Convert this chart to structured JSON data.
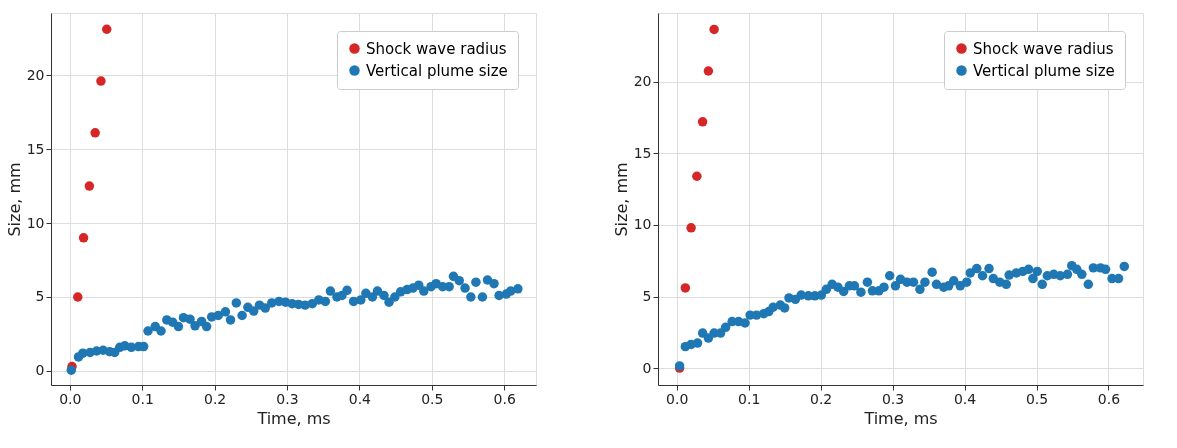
{
  "chart_data": [
    {
      "type": "scatter",
      "xlabel": "Time, ms",
      "ylabel": "Size, mm",
      "xlim": [
        -0.026,
        0.644
      ],
      "ylim": [
        -0.95,
        24.2
      ],
      "xticks": [
        {
          "value": 0,
          "label": "0.0"
        },
        0.1,
        0.2,
        0.3,
        0.4,
        0.5,
        0.6
      ],
      "yticks": [
        0,
        5,
        10,
        15,
        20
      ],
      "grid": true,
      "legend": "top right",
      "marker": "circle",
      "series": [
        {
          "name": "Shock wave radius",
          "color": "#d62728",
          "x": [
            0.003,
            0.011,
            0.019,
            0.027,
            0.035,
            0.043,
            0.051
          ],
          "values": [
            0.3,
            5,
            9,
            12.5,
            16.1,
            19.6,
            23.1
          ]
        },
        {
          "name": "Vertical plume size",
          "color": "#1f77b4",
          "x": [
            0.002,
            0.012,
            0.018,
            0.028,
            0.037,
            0.046,
            0.055,
            0.062,
            0.069,
            0.076,
            0.085,
            0.095,
            0.102,
            0.108,
            0.118,
            0.126,
            0.134,
            0.142,
            0.15,
            0.157,
            0.166,
            0.173,
            0.182,
            0.189,
            0.196,
            0.205,
            0.215,
            0.222,
            0.23,
            0.238,
            0.246,
            0.254,
            0.262,
            0.27,
            0.279,
            0.289,
            0.298,
            0.307,
            0.316,
            0.325,
            0.335,
            0.344,
            0.353,
            0.36,
            0.369,
            0.376,
            0.383,
            0.392,
            0.402,
            0.409,
            0.418,
            0.425,
            0.434,
            0.441,
            0.449,
            0.457,
            0.466,
            0.474,
            0.482,
            0.489,
            0.499,
            0.506,
            0.515,
            0.524,
            0.53,
            0.538,
            0.546,
            0.554,
            0.561,
            0.57,
            0.577,
            0.586,
            0.593,
            0.603,
            0.609,
            0.619
          ],
          "values": [
            0.05,
            0.95,
            1.2,
            1.25,
            1.35,
            1.4,
            1.3,
            1.25,
            1.6,
            1.7,
            1.6,
            1.65,
            1.65,
            2.7,
            3.0,
            2.7,
            3.45,
            3.3,
            3.0,
            3.6,
            3.5,
            3.05,
            3.35,
            3.0,
            3.65,
            3.75,
            4.0,
            3.45,
            4.6,
            3.75,
            4.3,
            4.05,
            4.45,
            4.25,
            4.6,
            4.7,
            4.65,
            4.55,
            4.5,
            4.45,
            4.55,
            4.8,
            4.7,
            5.4,
            5.0,
            5.1,
            5.45,
            4.7,
            4.8,
            5.25,
            5.0,
            5.4,
            5.1,
            4.65,
            5.0,
            5.35,
            5.5,
            5.6,
            5.8,
            5.4,
            5.7,
            5.9,
            5.7,
            5.7,
            6.4,
            6.1,
            5.6,
            5.0,
            6.0,
            5.0,
            6.15,
            5.9,
            5.1,
            5.2,
            5.4,
            5.55
          ]
        }
      ]
    },
    {
      "type": "scatter",
      "xlabel": "Time, ms",
      "ylabel": "Size, mm",
      "xlim": [
        -0.026,
        0.648
      ],
      "ylim": [
        -1.18,
        24.8
      ],
      "xticks": [
        {
          "value": 0,
          "label": "0.0"
        },
        0.1,
        0.2,
        0.3,
        0.4,
        0.5,
        0.6
      ],
      "yticks": [
        0,
        5,
        10,
        15,
        20
      ],
      "grid": true,
      "legend": "top right",
      "marker": "circle",
      "series": [
        {
          "name": "Shock wave radius",
          "color": "#d62728",
          "x": [
            0.004,
            0.012,
            0.02,
            0.028,
            0.036,
            0.044,
            0.052
          ],
          "values": [
            0,
            5.6,
            9.8,
            13.4,
            17.2,
            20.75,
            23.65
          ]
        },
        {
          "name": "Vertical plume size",
          "color": "#1f77b4",
          "x": [
            0.004,
            0.012,
            0.02,
            0.029,
            0.036,
            0.044,
            0.052,
            0.061,
            0.068,
            0.077,
            0.086,
            0.095,
            0.102,
            0.111,
            0.121,
            0.128,
            0.134,
            0.144,
            0.15,
            0.156,
            0.165,
            0.173,
            0.183,
            0.192,
            0.201,
            0.208,
            0.216,
            0.224,
            0.232,
            0.24,
            0.247,
            0.256,
            0.265,
            0.272,
            0.281,
            0.288,
            0.296,
            0.304,
            0.311,
            0.32,
            0.329,
            0.338,
            0.345,
            0.355,
            0.361,
            0.371,
            0.378,
            0.385,
            0.394,
            0.403,
            0.408,
            0.417,
            0.425,
            0.434,
            0.44,
            0.449,
            0.458,
            0.462,
            0.472,
            0.481,
            0.489,
            0.495,
            0.501,
            0.508,
            0.515,
            0.524,
            0.533,
            0.543,
            0.549,
            0.556,
            0.563,
            0.572,
            0.579,
            0.589,
            0.596,
            0.605,
            0.614,
            0.622
          ],
          "values": [
            0.15,
            1.5,
            1.65,
            1.75,
            2.45,
            2.1,
            2.45,
            2.45,
            2.85,
            3.25,
            3.25,
            3.15,
            3.7,
            3.7,
            3.8,
            3.95,
            4.25,
            4.4,
            4.2,
            4.9,
            4.8,
            5.1,
            5.05,
            5.05,
            5.1,
            5.5,
            5.85,
            5.65,
            5.35,
            5.75,
            5.75,
            5.3,
            6.0,
            5.4,
            5.4,
            5.65,
            6.45,
            5.75,
            6.2,
            6.0,
            6.0,
            5.5,
            6.0,
            6.7,
            5.85,
            5.65,
            5.75,
            6.1,
            5.75,
            6.0,
            6.65,
            6.95,
            6.45,
            6.95,
            6.25,
            6.0,
            5.85,
            6.5,
            6.65,
            6.75,
            6.9,
            6.25,
            6.75,
            5.85,
            6.45,
            6.55,
            6.45,
            6.55,
            7.15,
            6.9,
            6.55,
            5.85,
            7.0,
            7.0,
            6.9,
            6.25,
            6.25,
            7.1
          ]
        }
      ]
    }
  ]
}
